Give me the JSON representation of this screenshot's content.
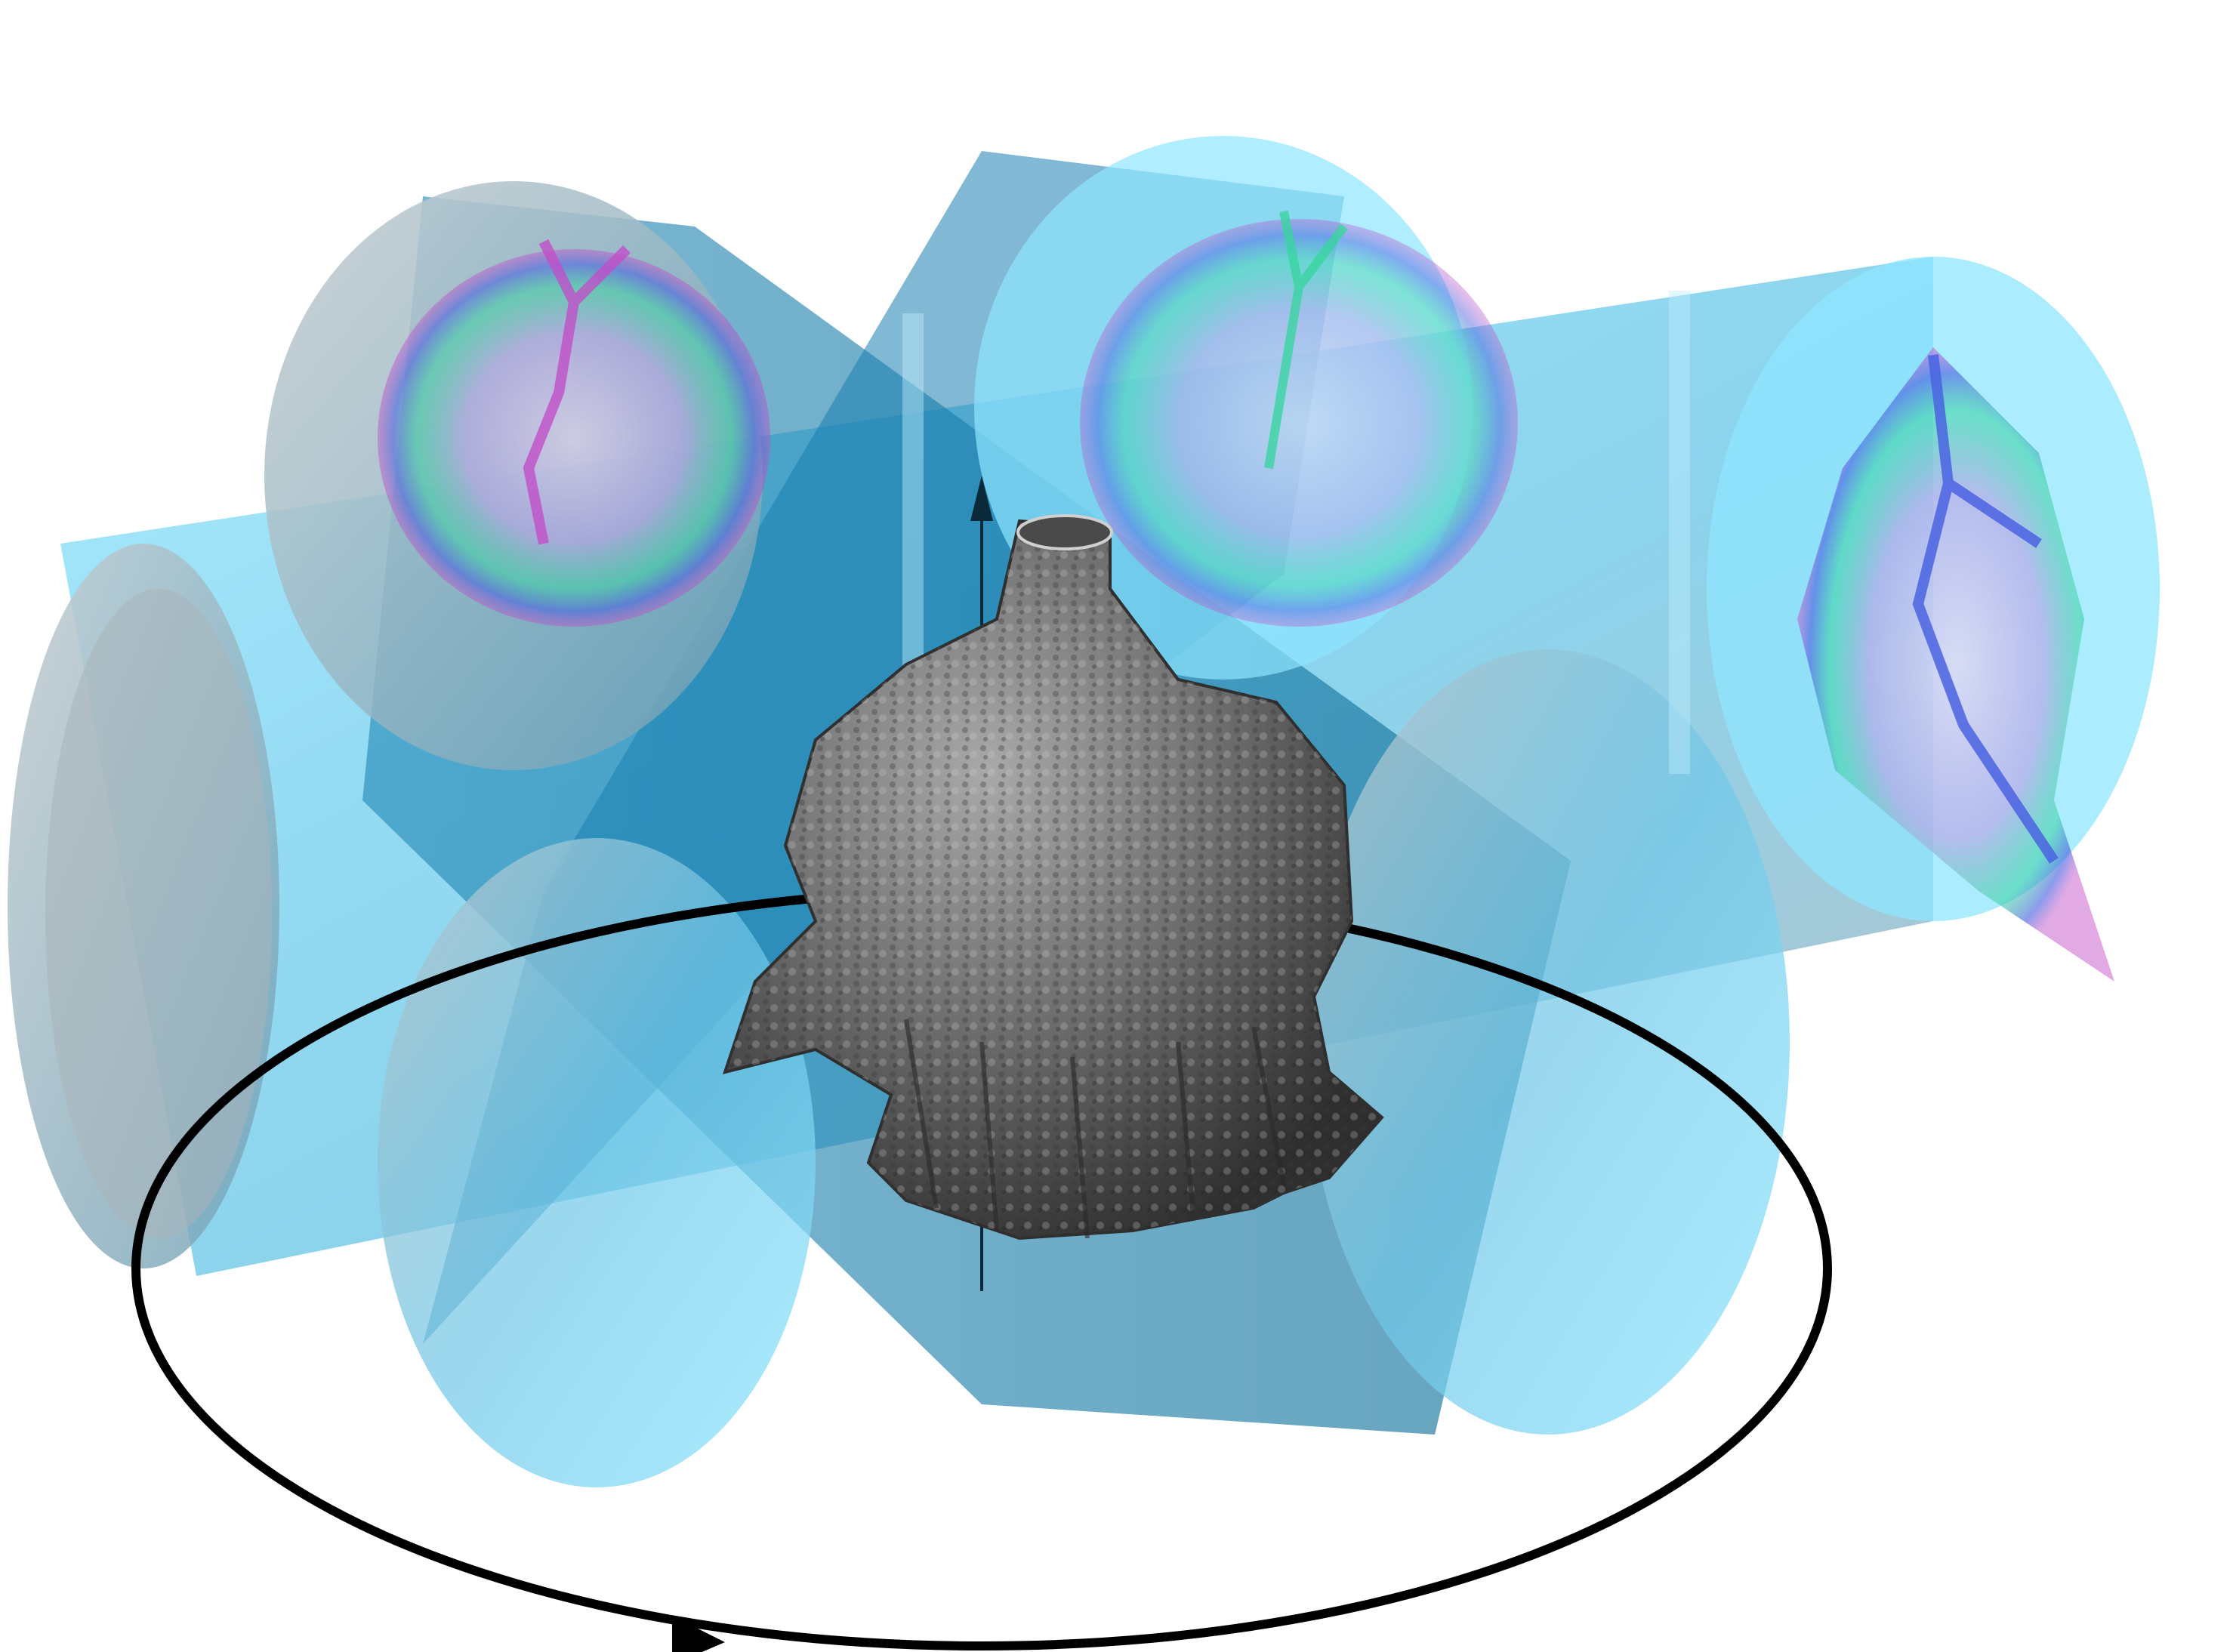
{
  "scene": {
    "colors": {
      "background": "#ffffff",
      "cylinder_light": "#8fe6ff",
      "cylinder_mid": "#3fb6e0",
      "cylinder_dark": "#0f6f98",
      "cylinder_gray": "#9aa7ad",
      "slice_magenta": "#c04fc8",
      "slice_green": "#38d4a0",
      "slice_blue": "#4a63e0",
      "slice_pale": "#e8d6f0",
      "object_gray": "#6f6f6f",
      "object_dark": "#2f2f2f",
      "orbit": "#000000"
    },
    "icons": {
      "rotation_direction": "arrow-head",
      "rotation_axis": "arrow-up"
    }
  }
}
